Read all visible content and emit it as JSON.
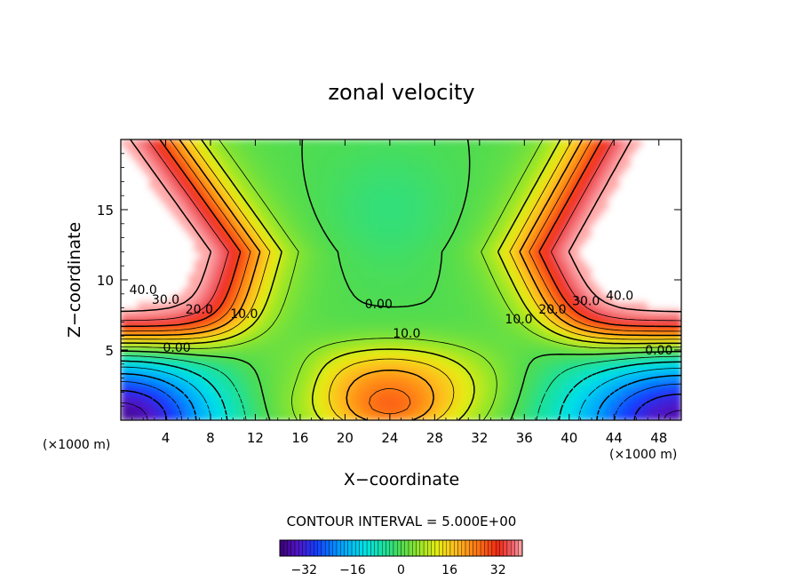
{
  "chart_data": {
    "type": "heatmap",
    "title": "zonal velocity",
    "xlabel": "X−coordinate",
    "ylabel": "Z−coordinate",
    "x_unit_left": "(×1000 m)",
    "x_unit_right": "(×1000 m)",
    "xlim": [
      0,
      50
    ],
    "ylim": [
      0,
      20
    ],
    "x_ticks": [
      4,
      8,
      12,
      16,
      20,
      24,
      28,
      32,
      36,
      40,
      44,
      48
    ],
    "x_tick_labels": [
      "4",
      "8",
      "12",
      "16",
      "20",
      "24",
      "28",
      "32",
      "36",
      "40",
      "44",
      "48"
    ],
    "y_ticks": [
      5,
      10,
      15
    ],
    "y_tick_labels": [
      "5",
      "10",
      "15"
    ],
    "contour_interval_text": "CONTOUR INTERVAL = 5.000E+00",
    "contour_labels": [
      {
        "text": "40.0",
        "x": 2,
        "z": 9.3
      },
      {
        "text": "30.0",
        "x": 4,
        "z": 8.6
      },
      {
        "text": "20.0",
        "x": 7,
        "z": 7.9
      },
      {
        "text": "10.0",
        "x": 11,
        "z": 7.6
      },
      {
        "text": "0.00",
        "x": 5,
        "z": 5.2
      },
      {
        "text": "0.00",
        "x": 23,
        "z": 8.3
      },
      {
        "text": "10.0",
        "x": 25.5,
        "z": 6.2
      },
      {
        "text": "10.0",
        "x": 35.5,
        "z": 7.2
      },
      {
        "text": "20.0",
        "x": 38.5,
        "z": 7.9
      },
      {
        "text": "30.0",
        "x": 41.5,
        "z": 8.5
      },
      {
        "text": "40.0",
        "x": 44.5,
        "z": 8.9
      },
      {
        "text": "0.00",
        "x": 48,
        "z": 5.0
      }
    ],
    "colorbar": {
      "min": -40,
      "max": 40,
      "ticks": [
        -32,
        -16,
        0,
        16,
        32
      ],
      "tick_labels": [
        "−32",
        "−16",
        "0",
        "16",
        "32"
      ]
    }
  }
}
